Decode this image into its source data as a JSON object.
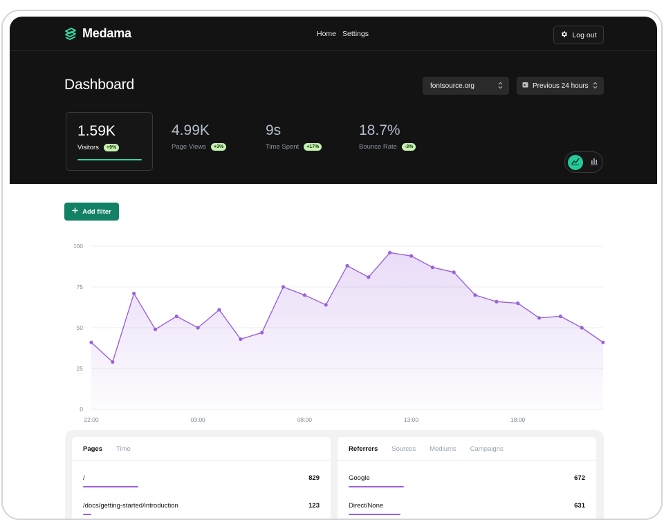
{
  "app": {
    "name": "Medama",
    "nav": [
      {
        "label": "Home"
      },
      {
        "label": "Settings"
      }
    ],
    "logout_label": "Log out"
  },
  "dashboard": {
    "title": "Dashboard",
    "site_select": "fontsource.org",
    "range_select": "Previous 24 hours"
  },
  "stats": [
    {
      "value": "1.59K",
      "label": "Visitors",
      "change": "+9%",
      "active": true
    },
    {
      "value": "4.99K",
      "label": "Page Views",
      "change": "+3%",
      "active": false
    },
    {
      "value": "9s",
      "label": "Time Spent",
      "change": "+17%",
      "active": false
    },
    {
      "value": "18.7%",
      "label": "Bounce Rate",
      "change": "-3%",
      "active": false
    }
  ],
  "chart_toggle": {
    "selected": "line"
  },
  "filter": {
    "add_label": "Add filter"
  },
  "chart_data": {
    "type": "area",
    "x": [
      "22:00",
      "23:00",
      "00:00",
      "01:00",
      "02:00",
      "03:00",
      "04:00",
      "05:00",
      "06:00",
      "07:00",
      "08:00",
      "09:00",
      "10:00",
      "11:00",
      "12:00",
      "13:00",
      "14:00",
      "15:00",
      "16:00",
      "17:00",
      "18:00",
      "19:00",
      "20:00",
      "21:00",
      "22:00"
    ],
    "values": [
      41,
      29,
      71,
      49,
      57,
      50,
      61,
      43,
      47,
      75,
      70,
      64,
      88,
      81,
      96,
      94,
      87,
      84,
      70,
      66,
      65,
      56,
      57,
      50,
      41
    ],
    "xticks": [
      "22:00",
      "03:00",
      "08:00",
      "13:00",
      "18:00"
    ],
    "yticks": [
      "0",
      "25",
      "50",
      "75",
      "100"
    ],
    "ylim": [
      0,
      100
    ],
    "grid": true,
    "color": "#9a61db"
  },
  "pages_panel": {
    "tabs": [
      {
        "label": "Pages",
        "active": true
      },
      {
        "label": "Time",
        "active": false
      }
    ],
    "rows": [
      {
        "label": "/",
        "value": "829",
        "share": 1.0
      },
      {
        "label": "/docs/getting-started/introduction",
        "value": "123",
        "share": 0.15
      }
    ]
  },
  "referrers_panel": {
    "tabs": [
      {
        "label": "Referrers",
        "active": true
      },
      {
        "label": "Sources",
        "active": false
      },
      {
        "label": "Mediums",
        "active": false
      },
      {
        "label": "Campaigns",
        "active": false
      }
    ],
    "rows": [
      {
        "label": "Google",
        "value": "672",
        "share": 1.0
      },
      {
        "label": "Direct/None",
        "value": "631",
        "share": 0.94
      }
    ]
  }
}
